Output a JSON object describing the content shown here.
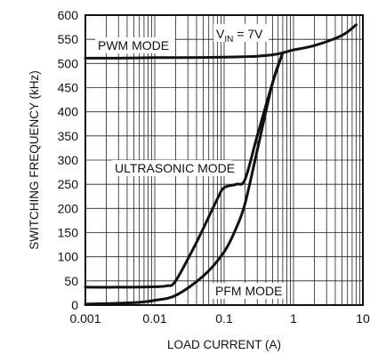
{
  "chart_data": {
    "type": "line",
    "xscale": "log",
    "xlim": [
      0.001,
      10
    ],
    "ylim": [
      0,
      600
    ],
    "grid": true,
    "xlabel": "LOAD CURRENT (A)",
    "ylabel": "SWITCHING FREQUENCY (kHz)",
    "xtick_labels": [
      "0.001",
      "0.01",
      "0.1",
      "1",
      "10"
    ],
    "xtick_values": [
      0.001,
      0.01,
      0.1,
      1,
      10
    ],
    "ytick_values": [
      0,
      50,
      100,
      150,
      200,
      250,
      300,
      350,
      400,
      450,
      500,
      550,
      600
    ],
    "ytick_labels": [
      "0",
      "50",
      "100",
      "150",
      "200",
      "250",
      "300",
      "350",
      "400",
      "450",
      "500",
      "550",
      "600"
    ],
    "annotations": {
      "vin_main": "V",
      "vin_sub": "IN",
      "vin_rest": " = 7V",
      "pwm": "PWM MODE",
      "ultrasonic": "ULTRASONIC MODE",
      "pfm": "PFM MODE"
    },
    "series": [
      {
        "x": [
          0.001,
          0.003,
          0.01,
          0.03,
          0.1,
          0.2,
          0.3,
          0.5,
          0.7,
          1,
          2,
          5,
          8
        ],
        "y": [
          511,
          511,
          512,
          512,
          513,
          514,
          515,
          518,
          522,
          528,
          537,
          558,
          580
        ]
      },
      {
        "x": [
          0.001,
          0.005,
          0.01,
          0.015,
          0.02,
          0.04,
          0.08,
          0.1,
          0.15,
          0.2,
          0.3,
          0.5,
          0.7
        ],
        "y": [
          37,
          37,
          38,
          40,
          50,
          130,
          220,
          243,
          250,
          260,
          350,
          460,
          522
        ]
      },
      {
        "x": [
          0.001,
          0.005,
          0.01,
          0.02,
          0.05,
          0.1,
          0.15,
          0.2,
          0.3,
          0.5,
          0.7
        ],
        "y": [
          2,
          5,
          10,
          20,
          60,
          110,
          160,
          210,
          320,
          460,
          522
        ]
      }
    ]
  }
}
